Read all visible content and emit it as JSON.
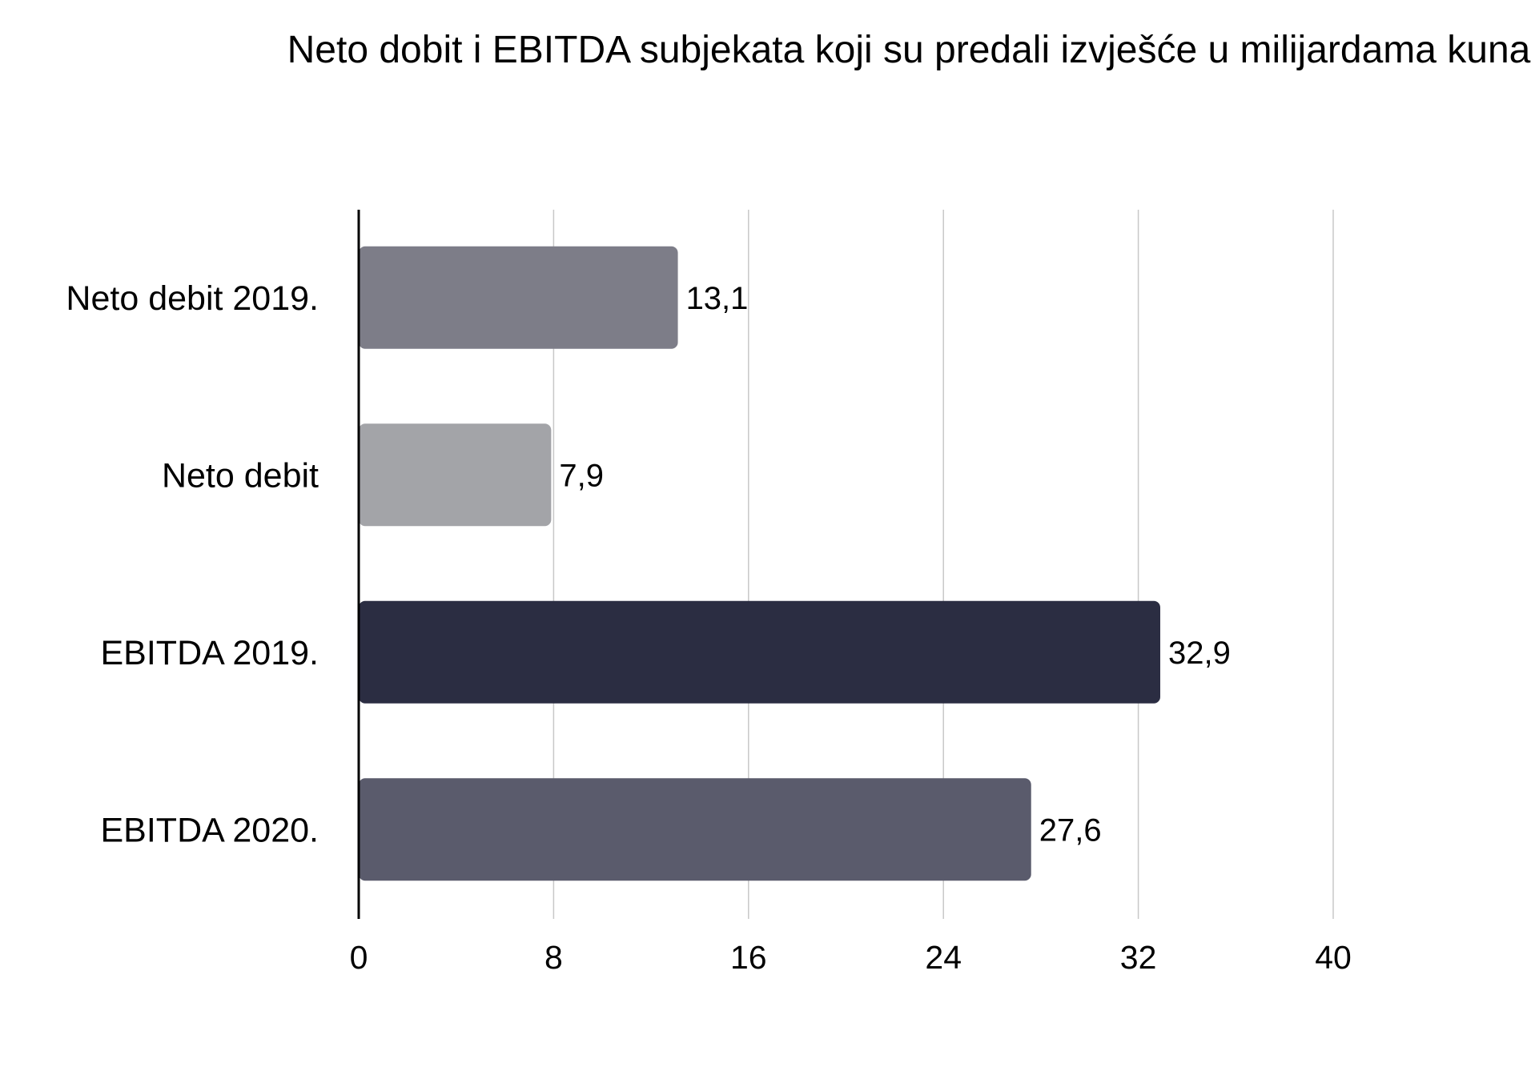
{
  "chart_data": {
    "type": "bar",
    "orientation": "horizontal",
    "title": "Neto dobit i EBITDA subjekata koji su predali izvješće u milijardama kuna",
    "categories": [
      "Neto debit 2019.",
      "Neto debit",
      "EBITDA 2019.",
      "EBITDA 2020."
    ],
    "values": [
      13.1,
      7.9,
      32.9,
      27.6
    ],
    "value_labels": [
      "13,1",
      "7,9",
      "32,9",
      "27,6"
    ],
    "colors": [
      "#7d7d88",
      "#a3a4a8",
      "#2b2d42",
      "#5a5b6c"
    ],
    "xticks": [
      "0",
      "8",
      "16",
      "24",
      "32",
      "40"
    ],
    "xlim": [
      0,
      40
    ],
    "grid": true,
    "legend": "none",
    "xlabel": "",
    "ylabel": ""
  }
}
